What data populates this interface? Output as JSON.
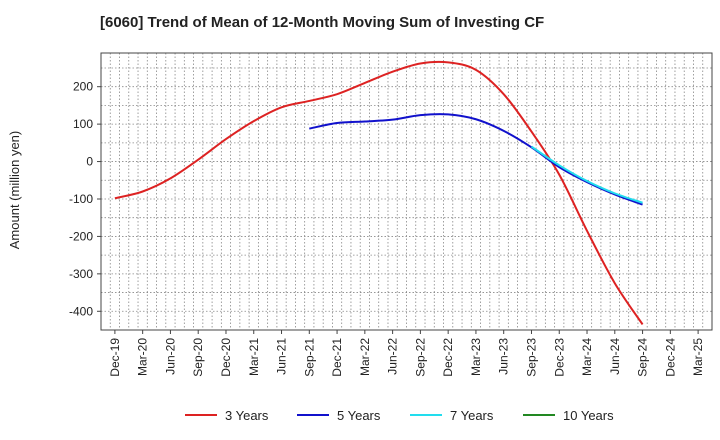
{
  "chart_data": {
    "type": "line",
    "title": "[6060]  Trend of Mean of 12-Month Moving Sum of Investing CF",
    "xlabel": "",
    "ylabel": "Amount (million yen)",
    "ylim": [
      -450,
      290
    ],
    "yticks": [
      -400,
      -300,
      -200,
      -100,
      0,
      100,
      200
    ],
    "grid": true,
    "categories": [
      "Dec-19",
      "Mar-20",
      "Jun-20",
      "Sep-20",
      "Dec-20",
      "Mar-21",
      "Jun-21",
      "Sep-21",
      "Dec-21",
      "Mar-22",
      "Jun-22",
      "Sep-22",
      "Dec-22",
      "Mar-23",
      "Jun-23",
      "Sep-23",
      "Dec-23",
      "Mar-24",
      "Jun-24",
      "Sep-24",
      "Dec-24",
      "Mar-25"
    ],
    "series": [
      {
        "name": "3 Years",
        "color": "#dd2222",
        "values": [
          -98,
          -80,
          -45,
          5,
          60,
          108,
          145,
          162,
          180,
          210,
          240,
          262,
          265,
          245,
          180,
          80,
          -35,
          -185,
          -325,
          -435,
          null,
          null
        ]
      },
      {
        "name": "5 Years",
        "color": "#1111cc",
        "values": [
          null,
          null,
          null,
          null,
          null,
          null,
          null,
          88,
          103,
          107,
          112,
          124,
          126,
          113,
          82,
          38,
          -15,
          -55,
          -88,
          -115,
          null,
          null
        ]
      },
      {
        "name": "7 Years",
        "color": "#22ddee",
        "values": [
          null,
          null,
          null,
          null,
          null,
          null,
          null,
          null,
          null,
          null,
          null,
          null,
          null,
          null,
          null,
          40,
          -10,
          -52,
          -85,
          -110,
          null,
          null
        ]
      },
      {
        "name": "10 Years",
        "color": "#228822",
        "values": [
          null,
          null,
          null,
          null,
          null,
          null,
          null,
          null,
          null,
          null,
          null,
          null,
          null,
          null,
          null,
          null,
          null,
          null,
          null,
          null,
          null,
          null
        ]
      }
    ]
  }
}
